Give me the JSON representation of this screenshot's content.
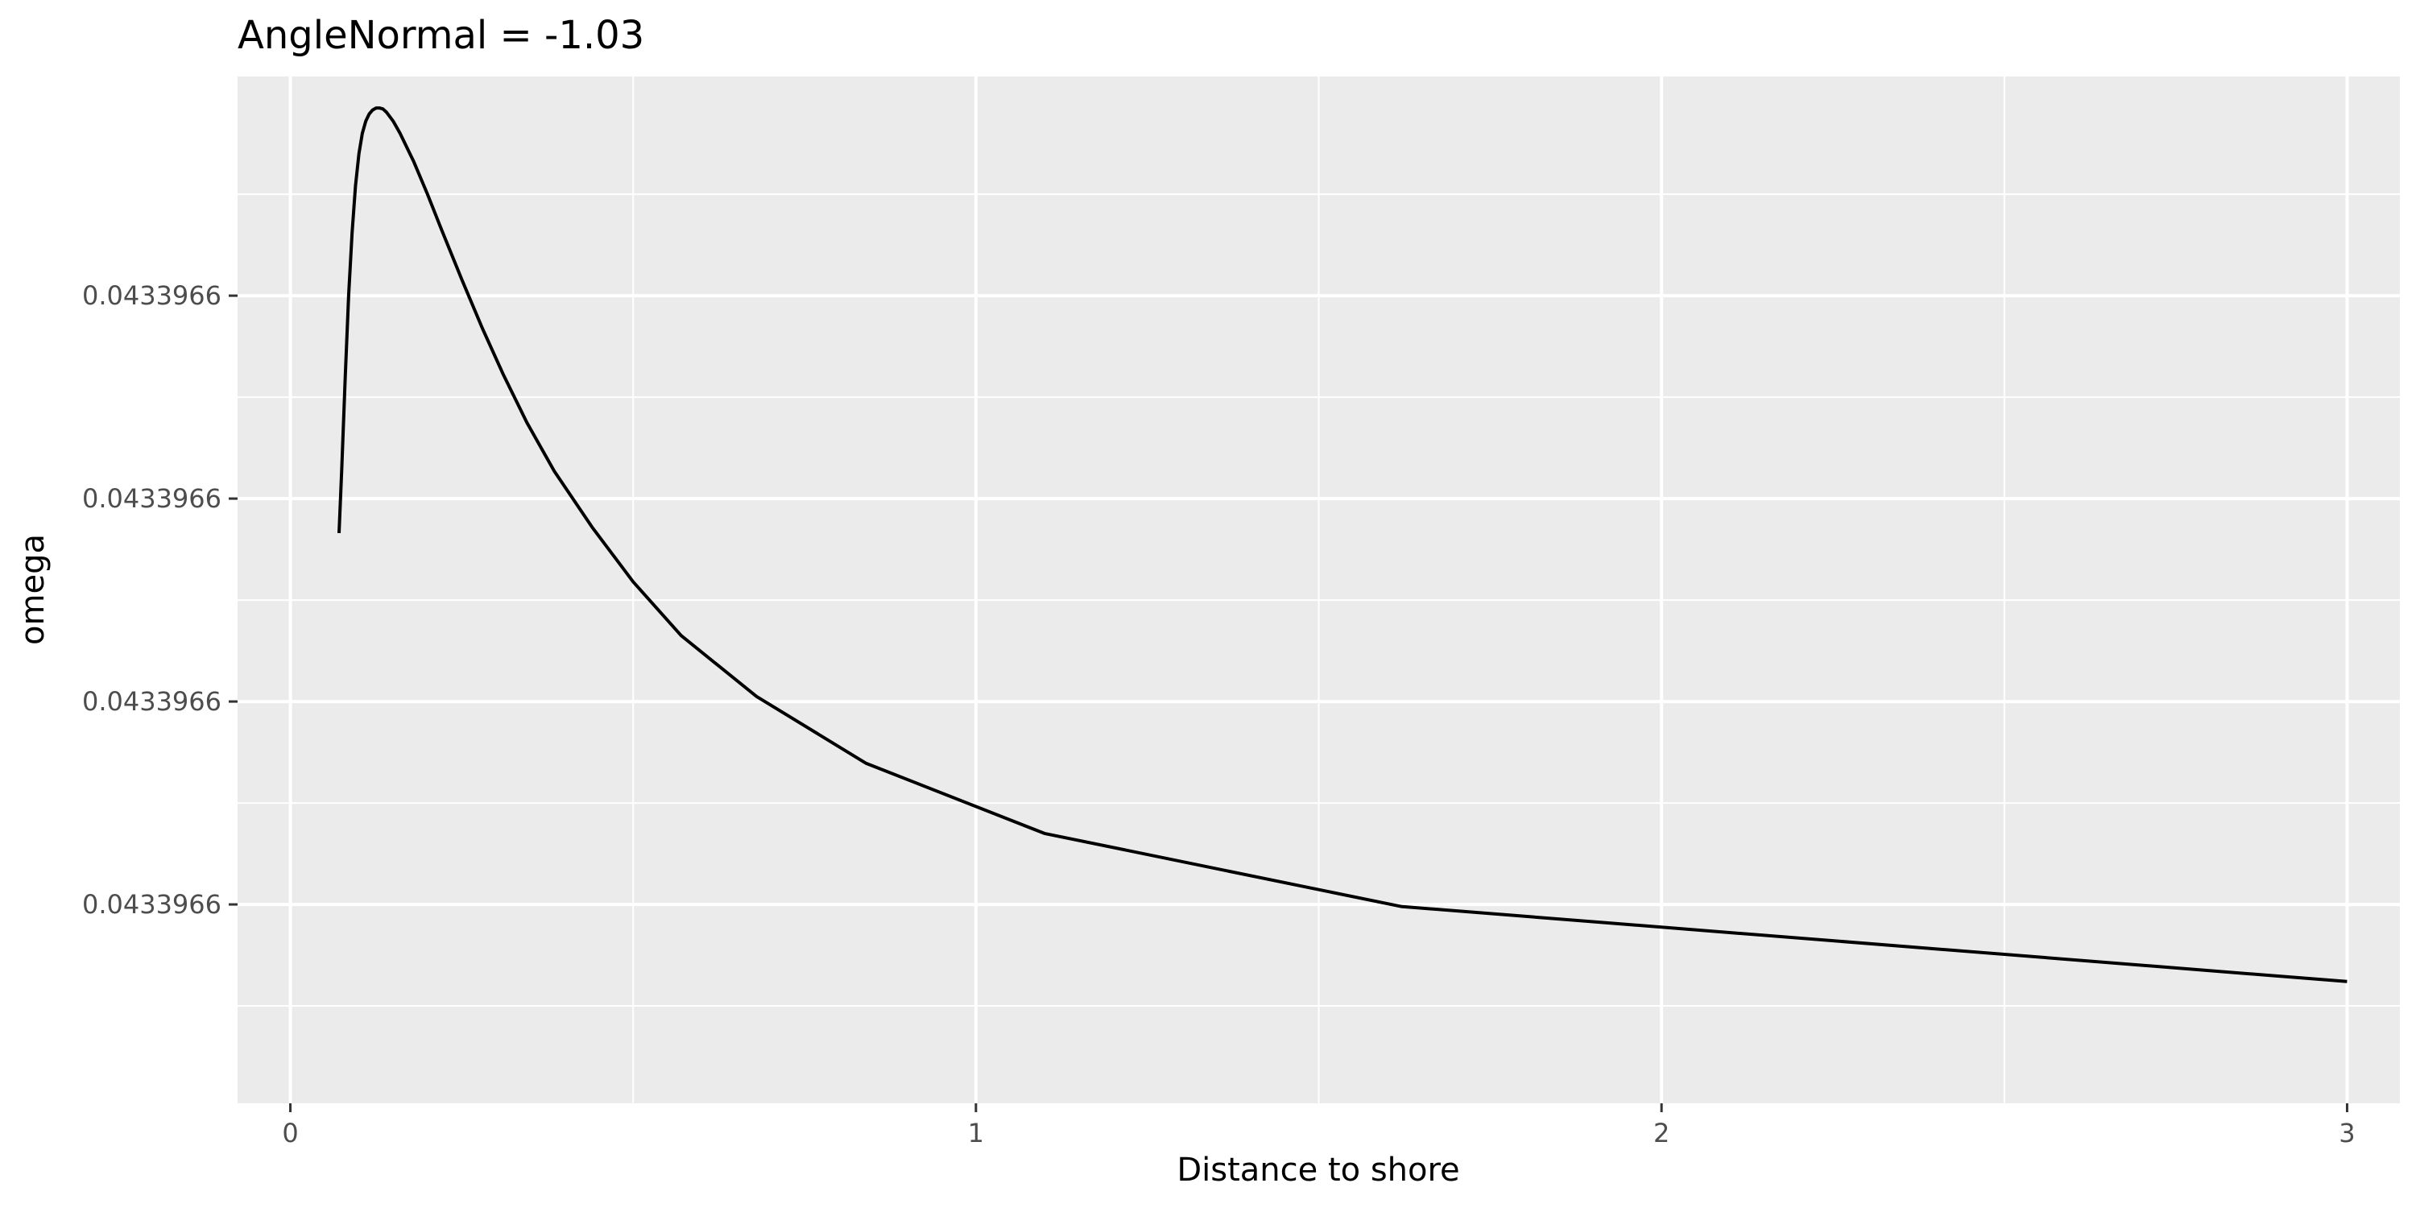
{
  "chart_data": {
    "type": "line",
    "title": "AngleNormal = -1.03",
    "xlabel": "Distance to shore",
    "ylabel": "omega",
    "xlim": [
      -0.077,
      3.077
    ],
    "ylim": [
      0.004,
      1.016
    ],
    "x_ticks": [
      {
        "value": 0,
        "label": "0"
      },
      {
        "value": 1,
        "label": "1"
      },
      {
        "value": 2,
        "label": "2"
      },
      {
        "value": 3,
        "label": "3"
      }
    ],
    "y_ticks": [
      {
        "value": 0.2,
        "label": "0.0433966"
      },
      {
        "value": 0.4,
        "label": "0.0433966"
      },
      {
        "value": 0.6,
        "label": "0.0433966"
      },
      {
        "value": 0.8,
        "label": "0.0433966"
      }
    ],
    "grid": true,
    "series": [
      {
        "color": "#000000",
        "x": [
          0.071,
          0.075,
          0.08,
          0.085,
          0.09,
          0.095,
          0.1,
          0.105,
          0.11,
          0.115,
          0.12,
          0.125,
          0.13,
          0.135,
          0.14,
          0.15,
          0.16,
          0.18,
          0.2,
          0.22,
          0.25,
          0.28,
          0.31,
          0.345,
          0.385,
          0.44,
          0.5,
          0.57,
          0.68,
          0.84,
          1.1,
          1.62,
          3.0
        ],
        "y": [
          0.566,
          0.63,
          0.72,
          0.8,
          0.862,
          0.908,
          0.94,
          0.96,
          0.972,
          0.979,
          0.983,
          0.985,
          0.985,
          0.984,
          0.981,
          0.972,
          0.96,
          0.932,
          0.9,
          0.866,
          0.816,
          0.768,
          0.723,
          0.675,
          0.627,
          0.572,
          0.518,
          0.465,
          0.405,
          0.339,
          0.27,
          0.198,
          0.124
        ]
      }
    ]
  }
}
